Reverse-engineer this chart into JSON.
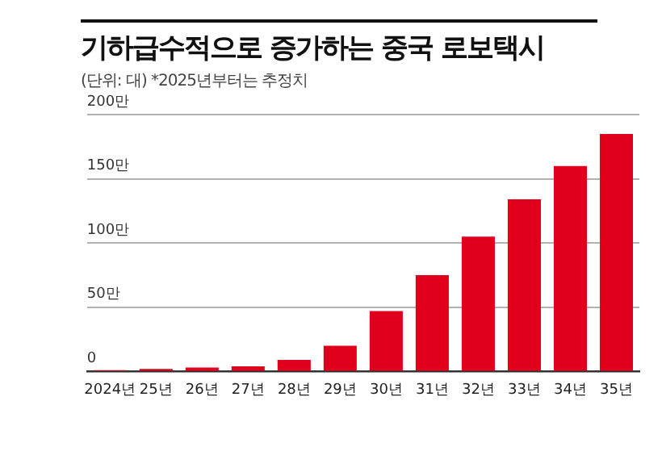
{
  "chart_data": {
    "type": "bar",
    "title": "기하급수적으로 증가하는 중국 로보택시",
    "subtitle": "(단위: 대)  *2025년부터는 추정치",
    "categories": [
      "2024년",
      "25년",
      "26년",
      "27년",
      "28년",
      "29년",
      "30년",
      "31년",
      "32년",
      "33년",
      "34년",
      "35년"
    ],
    "values": [
      1,
      2,
      3,
      4,
      9,
      20,
      47,
      75,
      105,
      134,
      160,
      185
    ],
    "color": "#e0001b",
    "ylim": [
      0,
      200
    ],
    "yticks": [
      {
        "value": 0,
        "label": "0"
      },
      {
        "value": 50,
        "label": "50만"
      },
      {
        "value": 100,
        "label": "100만"
      },
      {
        "value": 150,
        "label": "150만"
      },
      {
        "value": 200,
        "label": "200만"
      }
    ],
    "grid": "y",
    "legend": false
  }
}
